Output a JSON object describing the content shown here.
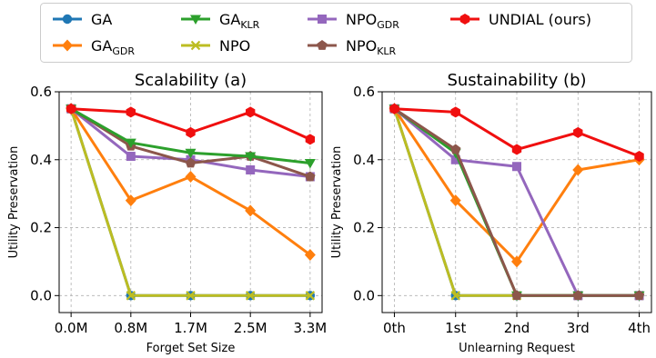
{
  "legend": [
    {
      "key": "ga",
      "label": "GA",
      "sub": "",
      "color": "#1f77b4",
      "marker": "circle"
    },
    {
      "key": "ga_gdr",
      "label": "GA",
      "sub": "GDR",
      "color": "#ff7f0e",
      "marker": "diamond"
    },
    {
      "key": "ga_klr",
      "label": "GA",
      "sub": "KLR",
      "color": "#2ca02c",
      "marker": "triangle-down"
    },
    {
      "key": "npo",
      "label": "NPO",
      "sub": "",
      "color": "#bcbd22",
      "marker": "x"
    },
    {
      "key": "npo_gdr",
      "label": "NPO",
      "sub": "GDR",
      "color": "#9467bd",
      "marker": "square"
    },
    {
      "key": "npo_klr",
      "label": "NPO",
      "sub": "KLR",
      "color": "#8c564b",
      "marker": "pentagon"
    },
    {
      "key": "undial",
      "label": "UNDIAL (ours)",
      "sub": "",
      "color": "#f00f0f",
      "marker": "hexagon"
    }
  ],
  "chart_data": [
    {
      "type": "line",
      "title": "Scalability (a)",
      "xlabel": "Forget Set Size",
      "ylabel": "Utility Preservation",
      "categories": [
        "0.0M",
        "0.8M",
        "1.7M",
        "2.5M",
        "3.3M"
      ],
      "ylim": [
        -0.05,
        0.6
      ],
      "yticks": [
        "0.0",
        "0.2",
        "0.4",
        "0.6"
      ],
      "grid": true,
      "series": [
        {
          "key": "ga",
          "name": "GA",
          "values": [
            0.55,
            0.0,
            0.0,
            0.0,
            0.0
          ]
        },
        {
          "key": "npo",
          "name": "NPO",
          "values": [
            0.55,
            0.0,
            0.0,
            0.0,
            0.0
          ]
        },
        {
          "key": "ga_gdr",
          "name": "GA_GDR",
          "values": [
            0.55,
            0.28,
            0.35,
            0.25,
            0.12
          ]
        },
        {
          "key": "npo_gdr",
          "name": "NPO_GDR",
          "values": [
            0.55,
            0.41,
            0.4,
            0.37,
            0.35
          ]
        },
        {
          "key": "npo_klr",
          "name": "NPO_KLR",
          "values": [
            0.55,
            0.44,
            0.39,
            0.41,
            0.35
          ]
        },
        {
          "key": "ga_klr",
          "name": "GA_KLR",
          "values": [
            0.55,
            0.45,
            0.42,
            0.41,
            0.39
          ]
        },
        {
          "key": "undial",
          "name": "UNDIAL (ours)",
          "values": [
            0.55,
            0.54,
            0.48,
            0.54,
            0.46
          ]
        }
      ]
    },
    {
      "type": "line",
      "title": "Sustainability (b)",
      "xlabel": "Unlearning Request",
      "ylabel": "Utility Preservation",
      "categories": [
        "0th",
        "1st",
        "2nd",
        "3rd",
        "4th"
      ],
      "ylim": [
        -0.05,
        0.6
      ],
      "yticks": [
        "0.0",
        "0.2",
        "0.4",
        "0.6"
      ],
      "grid": true,
      "series": [
        {
          "key": "ga",
          "name": "GA",
          "values": [
            0.55,
            0.0,
            0.0,
            0.0,
            0.0
          ]
        },
        {
          "key": "npo",
          "name": "NPO",
          "values": [
            0.55,
            0.0,
            0.0,
            0.0,
            0.0
          ]
        },
        {
          "key": "ga_gdr",
          "name": "GA_GDR",
          "values": [
            0.55,
            0.28,
            0.1,
            0.37,
            0.4
          ]
        },
        {
          "key": "npo_gdr",
          "name": "NPO_GDR",
          "values": [
            0.55,
            0.4,
            0.38,
            0.0,
            0.0
          ]
        },
        {
          "key": "ga_klr",
          "name": "GA_KLR",
          "values": [
            0.55,
            0.42,
            0.0,
            0.0,
            0.0
          ]
        },
        {
          "key": "npo_klr",
          "name": "NPO_KLR",
          "values": [
            0.55,
            0.43,
            0.0,
            0.0,
            0.0
          ]
        },
        {
          "key": "undial",
          "name": "UNDIAL (ours)",
          "values": [
            0.55,
            0.54,
            0.43,
            0.48,
            0.41
          ]
        }
      ]
    }
  ]
}
